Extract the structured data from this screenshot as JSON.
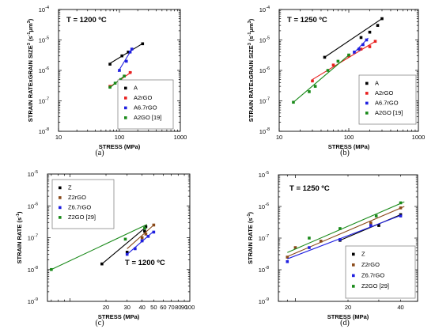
{
  "figure": {
    "captions": [
      "(a)",
      "(b)",
      "(c)",
      "(d)"
    ]
  },
  "chart_data": [
    {
      "panel": "a",
      "type": "scatter",
      "xscale": "log",
      "yscale": "log",
      "xlim": [
        10,
        1000
      ],
      "ylim": [
        1e-08,
        0.0001
      ],
      "xlabel": "STRESS (MPa)",
      "ylabel": "STRAIN RATExGRAIN SIZE",
      "ylabel_parts": [
        {
          "t": "STRAIN RATExGRAIN SIZE"
        },
        {
          "t": "3",
          "sup": true
        },
        {
          "t": " (s"
        },
        {
          "t": "-1",
          "sup": true
        },
        {
          "t": "μm"
        },
        {
          "t": "3",
          "sup": true
        },
        {
          "t": ")"
        }
      ],
      "xtick_labels": [
        {
          "v": 10,
          "t": "10"
        },
        {
          "v": 100,
          "t": "100"
        },
        {
          "v": 1000,
          "t": "1000"
        }
      ],
      "ytick_labels": [
        {
          "v": 1e-08,
          "m": "10",
          "e": "-8"
        },
        {
          "v": 1e-07,
          "m": "10",
          "e": "-7"
        },
        {
          "v": 1e-06,
          "m": "10",
          "e": "-6"
        },
        {
          "v": 1e-05,
          "m": "10",
          "e": "-5"
        },
        {
          "v": 0.0001,
          "m": "10",
          "e": "-4"
        }
      ],
      "annotation": "T = 1200 ºC",
      "legend_position": "lower-right",
      "series": [
        {
          "name": "A",
          "color": "#000000",
          "x": [
            70,
            110,
            140,
            240
          ],
          "y": [
            1.6e-06,
            3e-06,
            4e-06,
            7.5e-06
          ],
          "fit": [
            [
              70,
              1.7e-06
            ],
            [
              240,
              7.6e-06
            ]
          ]
        },
        {
          "name": "A2rGO",
          "color": "#e8201f",
          "x": [
            70,
            100,
            150
          ],
          "y": [
            3e-07,
            4.5e-07,
            8.5e-07
          ],
          "fit": [
            [
              70,
              2.9e-07
            ],
            [
              160,
              9e-07
            ]
          ]
        },
        {
          "name": "A6.7rGO",
          "color": "#1f1fe0",
          "x": [
            100,
            130,
            150,
            160
          ],
          "y": [
            1e-06,
            2e-06,
            4e-06,
            5e-06
          ],
          "fit": [
            [
              95,
              9e-07
            ],
            [
              165,
              5.5e-06
            ]
          ]
        },
        {
          "name": "A2GO [19]",
          "color": "#1a8a1a",
          "x": [
            70,
            85,
            105,
            120
          ],
          "y": [
            2.8e-07,
            3.8e-07,
            5e-07,
            6.5e-07
          ],
          "fit": [
            [
              68,
              2.6e-07
            ],
            [
              125,
              7e-07
            ]
          ]
        }
      ]
    },
    {
      "panel": "b",
      "type": "scatter",
      "xscale": "log",
      "yscale": "log",
      "xlim": [
        10,
        1000
      ],
      "ylim": [
        1e-08,
        0.0001
      ],
      "xlabel": "STRESS (MPa)",
      "ylabel": "STRAIN RATExGRAIN SIZE",
      "ylabel_parts": [
        {
          "t": "STRAIN RATExGRAIN SIZE"
        },
        {
          "t": "3",
          "sup": true
        },
        {
          "t": " (s"
        },
        {
          "t": "-1",
          "sup": true
        },
        {
          "t": "μm"
        },
        {
          "t": "3",
          "sup": true
        },
        {
          "t": ")"
        }
      ],
      "xtick_labels": [
        {
          "v": 10,
          "t": "10"
        },
        {
          "v": 100,
          "t": "100"
        },
        {
          "v": 1000,
          "t": "1000"
        }
      ],
      "ytick_labels": [
        {
          "v": 1e-08,
          "m": "10",
          "e": "-8"
        },
        {
          "v": 1e-07,
          "m": "10",
          "e": "-7"
        },
        {
          "v": 1e-06,
          "m": "10",
          "e": "-6"
        },
        {
          "v": 1e-05,
          "m": "10",
          "e": "-5"
        },
        {
          "v": 0.0001,
          "m": "10",
          "e": "-4"
        }
      ],
      "annotation": "T = 1250 ºC",
      "legend_position": "lower-right",
      "series": [
        {
          "name": "A",
          "color": "#000000",
          "x": [
            45,
            150,
            200,
            260,
            300
          ],
          "y": [
            2.7e-06,
            1.2e-05,
            1.8e-05,
            3e-05,
            5e-05
          ],
          "fit": [
            [
              45,
              2.7e-06
            ],
            [
              300,
              5e-05
            ]
          ]
        },
        {
          "name": "A2rGO",
          "color": "#e8201f",
          "x": [
            30,
            60,
            100,
            150,
            200,
            240
          ],
          "y": [
            4.5e-07,
            1.5e-06,
            3e-06,
            5e-06,
            6e-06,
            9e-06
          ],
          "fit": [
            [
              30,
              5e-07
            ],
            [
              250,
              9.5e-06
            ]
          ]
        },
        {
          "name": "A6.7rGO",
          "color": "#1f1fe0",
          "x": [
            120,
            140,
            160,
            180
          ],
          "y": [
            4e-06,
            5e-06,
            7e-06,
            1e-05
          ],
          "fit": [
            [
              115,
              3.5e-06
            ],
            [
              190,
              1.15e-05
            ]
          ]
        },
        {
          "name": "A2GO [19]",
          "color": "#1a8a1a",
          "x": [
            16,
            27,
            33,
            50,
            70,
            100
          ],
          "y": [
            9e-08,
            2e-07,
            3e-07,
            1e-06,
            2e-06,
            3.2e-06
          ],
          "fit": [
            [
              16,
              9e-08
            ],
            [
              105,
              3.5e-06
            ]
          ]
        }
      ]
    },
    {
      "panel": "c",
      "type": "scatter",
      "xscale": "log",
      "yscale": "log",
      "xlim": [
        6.5,
        100
      ],
      "ylim": [
        1e-09,
        1e-05
      ],
      "xlabel": "STRESS (MPa)",
      "ylabel": "STRAIN RATE (s-1)",
      "ylabel_parts": [
        {
          "t": "STRAIN RATE (s"
        },
        {
          "t": "-1",
          "sup": true
        },
        {
          "t": ")"
        }
      ],
      "xtick_labels": [
        {
          "v": 20,
          "t": "20"
        },
        {
          "v": 30,
          "t": "30"
        },
        {
          "v": 40,
          "t": "40"
        },
        {
          "v": 50,
          "t": "50"
        },
        {
          "v": 60,
          "t": "60"
        },
        {
          "v": 70,
          "t": "70"
        },
        {
          "v": 80,
          "t": "80"
        },
        {
          "v": 90,
          "t": "90"
        },
        {
          "v": 100,
          "t": "100"
        }
      ],
      "ytick_labels": [
        {
          "v": 1e-09,
          "m": "10",
          "e": "-9"
        },
        {
          "v": 1e-08,
          "m": "10",
          "e": "-8"
        },
        {
          "v": 1e-07,
          "m": "10",
          "e": "-7"
        },
        {
          "v": 1e-06,
          "m": "10",
          "e": "-6"
        },
        {
          "v": 1e-05,
          "m": "10",
          "e": "-5"
        }
      ],
      "annotation": "T = 1200 ºC",
      "legend_position": "top-left",
      "series": [
        {
          "name": "Z",
          "color": "#000000",
          "x": [
            18.5,
            30,
            40,
            42,
            43
          ],
          "y": [
            1.5e-08,
            3.5e-08,
            8e-08,
            1.6e-07,
            2.2e-07
          ],
          "fit": [
            [
              18.5,
              1.5e-08
            ],
            [
              44,
              2.3e-07
            ]
          ]
        },
        {
          "name": "Z2rGO",
          "color": "#8a4a1a",
          "x": [
            40,
            43,
            50
          ],
          "y": [
            1e-07,
            1.3e-07,
            2.5e-07
          ],
          "fit": [
            [
              30,
              4.5e-08
            ],
            [
              50,
              2.5e-07
            ]
          ]
        },
        {
          "name": "Z6.7rGO",
          "color": "#1f1fe0",
          "x": [
            30,
            35,
            40,
            45,
            50
          ],
          "y": [
            3e-08,
            4.5e-08,
            8e-08,
            1.1e-07,
            1.5e-07
          ],
          "fit": [
            [
              30,
              3e-08
            ],
            [
              50,
              1.6e-07
            ]
          ]
        },
        {
          "name": "Z2GO [29]",
          "color": "#1a8a1a",
          "x": [
            7,
            29,
            42
          ],
          "y": [
            1e-08,
            9e-08,
            2e-07
          ],
          "fit": [
            [
              7,
              1e-08
            ],
            [
              44,
              2.6e-07
            ]
          ]
        }
      ]
    },
    {
      "panel": "d",
      "type": "scatter",
      "xscale": "log",
      "yscale": "log",
      "xlim": [
        8,
        50
      ],
      "ylim": [
        1e-09,
        1e-05
      ],
      "xlabel": "STRESS (MPa)",
      "ylabel": "STRAIN RATE (s-1)",
      "ylabel_parts": [
        {
          "t": "STRAIN RATE (s"
        },
        {
          "t": "-1",
          "sup": true
        },
        {
          "t": ")"
        }
      ],
      "xtick_labels": [
        {
          "v": 20,
          "t": "20"
        },
        {
          "v": 40,
          "t": "40"
        }
      ],
      "ytick_labels": [
        {
          "v": 1e-09,
          "m": "10",
          "e": "-9"
        },
        {
          "v": 1e-08,
          "m": "10",
          "e": "-8"
        },
        {
          "v": 1e-07,
          "m": "10",
          "e": "-7"
        },
        {
          "v": 1e-06,
          "m": "10",
          "e": "-6"
        },
        {
          "v": 1e-05,
          "m": "10",
          "e": "-5"
        }
      ],
      "annotation": "T = 1250 ºC",
      "legend_position": "bottom-right",
      "series": [
        {
          "name": "Z",
          "color": "#000000",
          "x": [
            18,
            30,
            40
          ],
          "y": [
            8.5e-08,
            2.5e-07,
            5.5e-07
          ],
          "fit": [
            [
              18,
              8.5e-08
            ],
            [
              40,
              5.5e-07
            ]
          ]
        },
        {
          "name": "Z2rGO",
          "color": "#8a4a1a",
          "x": [
            9,
            10,
            14,
            27,
            40
          ],
          "y": [
            2.5e-08,
            5e-08,
            8e-08,
            3e-07,
            9e-07
          ],
          "fit": [
            [
              9,
              2.6e-08
            ],
            [
              42,
              1e-06
            ]
          ]
        },
        {
          "name": "Z6.7rGO",
          "color": "#1f1fe0",
          "x": [
            9,
            12,
            18,
            27,
            40
          ],
          "y": [
            1.8e-08,
            5e-08,
            9e-08,
            2.5e-07,
            5e-07
          ],
          "fit": [
            [
              9,
              2.2e-08
            ],
            [
              40,
              5.2e-07
            ]
          ]
        },
        {
          "name": "Z2GO [29]",
          "color": "#1a8a1a",
          "x": [
            12,
            18,
            29,
            40
          ],
          "y": [
            1e-07,
            2e-07,
            5e-07,
            1.3e-06
          ],
          "fit": [
            [
              9,
              3.5e-08
            ],
            [
              42,
              1.4e-06
            ]
          ]
        }
      ]
    }
  ]
}
